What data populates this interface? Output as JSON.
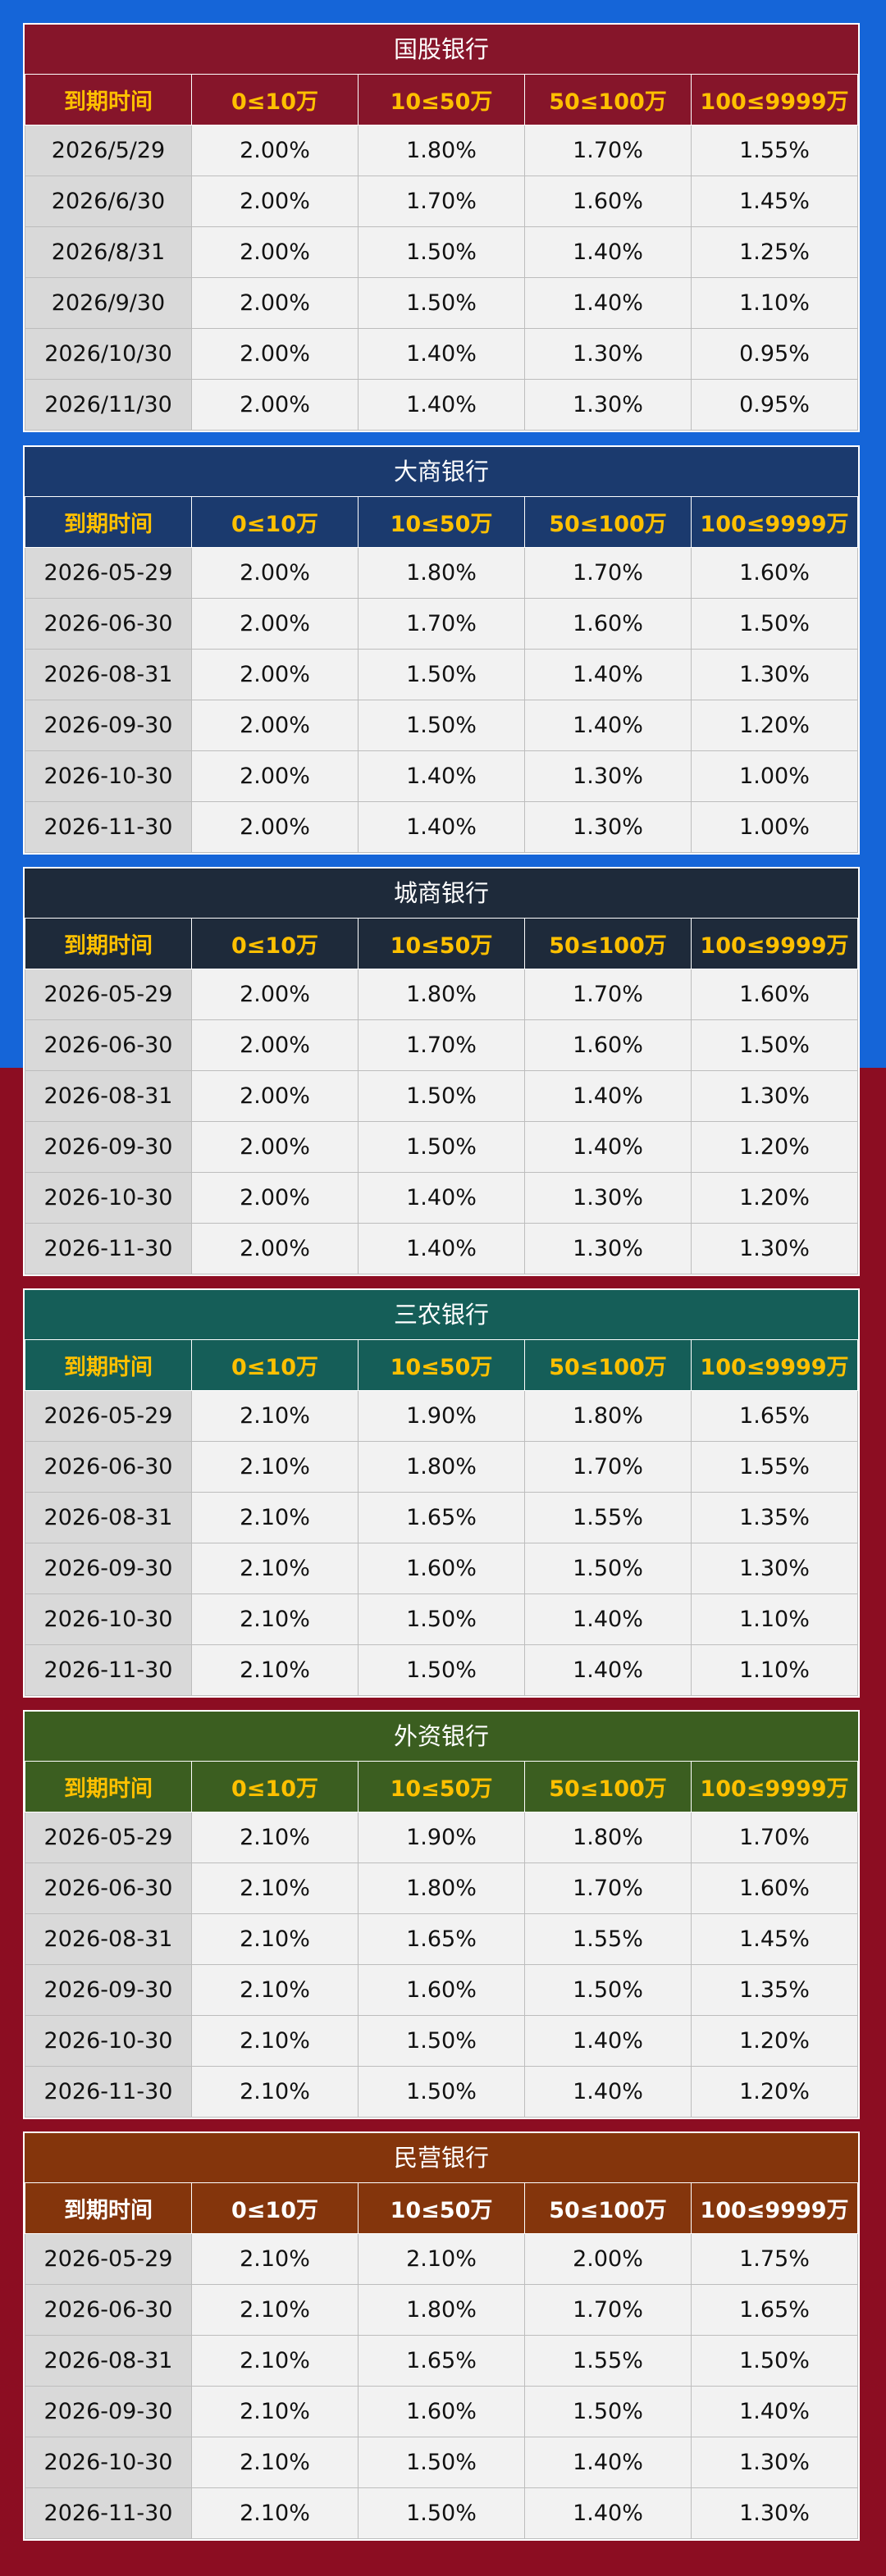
{
  "colors": {
    "background_top": "#1565d8",
    "background_bottom": "#8c0d22",
    "header_gold": "#ffc000",
    "header_white": "#ffffff"
  },
  "columns": [
    "到期时间",
    "0≤10万",
    "10≤50万",
    "50≤100万",
    "100≤9999万"
  ],
  "sections": [
    {
      "title": "国股银行",
      "theme_color": "#86152a",
      "header_text_color": "#ffc000",
      "rows": [
        [
          "2026/5/29",
          "2.00%",
          "1.80%",
          "1.70%",
          "1.55%"
        ],
        [
          "2026/6/30",
          "2.00%",
          "1.70%",
          "1.60%",
          "1.45%"
        ],
        [
          "2026/8/31",
          "2.00%",
          "1.50%",
          "1.40%",
          "1.25%"
        ],
        [
          "2026/9/30",
          "2.00%",
          "1.50%",
          "1.40%",
          "1.10%"
        ],
        [
          "2026/10/30",
          "2.00%",
          "1.40%",
          "1.30%",
          "0.95%"
        ],
        [
          "2026/11/30",
          "2.00%",
          "1.40%",
          "1.30%",
          "0.95%"
        ]
      ]
    },
    {
      "title": "大商银行",
      "theme_color": "#1b3a6e",
      "header_text_color": "#ffc000",
      "rows": [
        [
          "2026-05-29",
          "2.00%",
          "1.80%",
          "1.70%",
          "1.60%"
        ],
        [
          "2026-06-30",
          "2.00%",
          "1.70%",
          "1.60%",
          "1.50%"
        ],
        [
          "2026-08-31",
          "2.00%",
          "1.50%",
          "1.40%",
          "1.30%"
        ],
        [
          "2026-09-30",
          "2.00%",
          "1.50%",
          "1.40%",
          "1.20%"
        ],
        [
          "2026-10-30",
          "2.00%",
          "1.40%",
          "1.30%",
          "1.00%"
        ],
        [
          "2026-11-30",
          "2.00%",
          "1.40%",
          "1.30%",
          "1.00%"
        ]
      ]
    },
    {
      "title": "城商银行",
      "theme_color": "#1e2a3a",
      "header_text_color": "#ffc000",
      "rows": [
        [
          "2026-05-29",
          "2.00%",
          "1.80%",
          "1.70%",
          "1.60%"
        ],
        [
          "2026-06-30",
          "2.00%",
          "1.70%",
          "1.60%",
          "1.50%"
        ],
        [
          "2026-08-31",
          "2.00%",
          "1.50%",
          "1.40%",
          "1.30%"
        ],
        [
          "2026-09-30",
          "2.00%",
          "1.50%",
          "1.40%",
          "1.20%"
        ],
        [
          "2026-10-30",
          "2.00%",
          "1.40%",
          "1.30%",
          "1.20%"
        ],
        [
          "2026-11-30",
          "2.00%",
          "1.40%",
          "1.30%",
          "1.30%"
        ]
      ]
    },
    {
      "title": "三农银行",
      "theme_color": "#155e58",
      "header_text_color": "#ffc000",
      "rows": [
        [
          "2026-05-29",
          "2.10%",
          "1.90%",
          "1.80%",
          "1.65%"
        ],
        [
          "2026-06-30",
          "2.10%",
          "1.80%",
          "1.70%",
          "1.55%"
        ],
        [
          "2026-08-31",
          "2.10%",
          "1.65%",
          "1.55%",
          "1.35%"
        ],
        [
          "2026-09-30",
          "2.10%",
          "1.60%",
          "1.50%",
          "1.30%"
        ],
        [
          "2026-10-30",
          "2.10%",
          "1.50%",
          "1.40%",
          "1.10%"
        ],
        [
          "2026-11-30",
          "2.10%",
          "1.50%",
          "1.40%",
          "1.10%"
        ]
      ]
    },
    {
      "title": "外资银行",
      "theme_color": "#3b5e20",
      "header_text_color": "#ffc000",
      "rows": [
        [
          "2026-05-29",
          "2.10%",
          "1.90%",
          "1.80%",
          "1.70%"
        ],
        [
          "2026-06-30",
          "2.10%",
          "1.80%",
          "1.70%",
          "1.60%"
        ],
        [
          "2026-08-31",
          "2.10%",
          "1.65%",
          "1.55%",
          "1.45%"
        ],
        [
          "2026-09-30",
          "2.10%",
          "1.60%",
          "1.50%",
          "1.35%"
        ],
        [
          "2026-10-30",
          "2.10%",
          "1.50%",
          "1.40%",
          "1.20%"
        ],
        [
          "2026-11-30",
          "2.10%",
          "1.50%",
          "1.40%",
          "1.20%"
        ]
      ]
    },
    {
      "title": "民营银行",
      "theme_color": "#84350c",
      "header_text_color": "#ffffff",
      "rows": [
        [
          "2026-05-29",
          "2.10%",
          "2.10%",
          "2.00%",
          "1.75%"
        ],
        [
          "2026-06-30",
          "2.10%",
          "1.80%",
          "1.70%",
          "1.65%"
        ],
        [
          "2026-08-31",
          "2.10%",
          "1.65%",
          "1.55%",
          "1.50%"
        ],
        [
          "2026-09-30",
          "2.10%",
          "1.60%",
          "1.50%",
          "1.40%"
        ],
        [
          "2026-10-30",
          "2.10%",
          "1.50%",
          "1.40%",
          "1.30%"
        ],
        [
          "2026-11-30",
          "2.10%",
          "1.50%",
          "1.40%",
          "1.30%"
        ]
      ]
    }
  ]
}
